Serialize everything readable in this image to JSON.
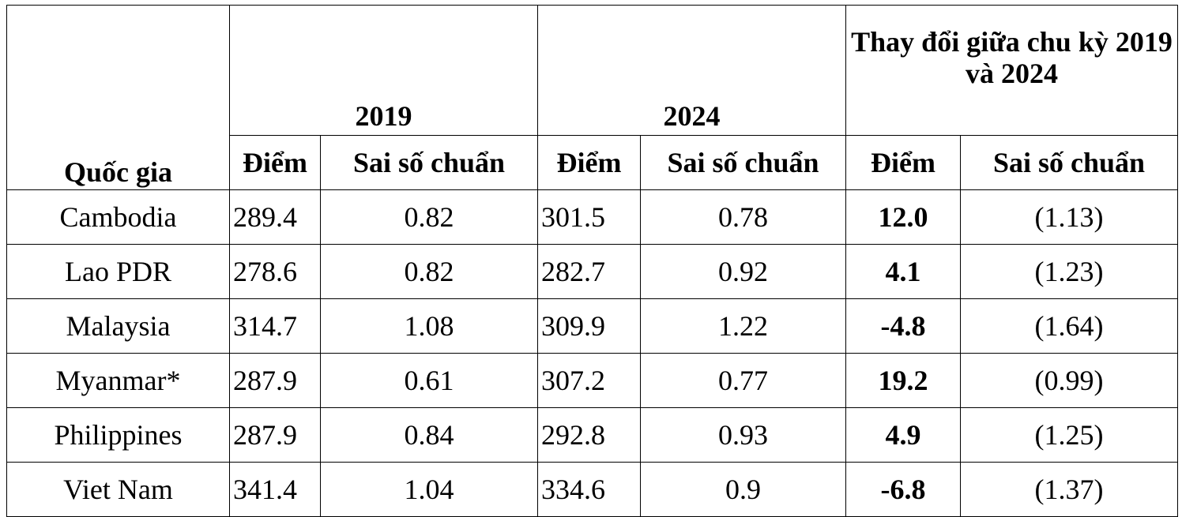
{
  "table": {
    "corner": "Quốc gia",
    "groups": [
      "2019",
      "2024",
      "Thay đổi giữa chu kỳ 2019 và 2024"
    ],
    "subheaders": [
      "Điểm",
      "Sai số chuẩn",
      "Điểm",
      "Sai số chuẩn",
      "Điểm",
      "Sai số chuẩn"
    ],
    "rows": [
      [
        "Cambodia",
        "289.4",
        "0.82",
        "301.5",
        "0.78",
        "12.0",
        "(1.13)"
      ],
      [
        "Lao PDR",
        "278.6",
        "0.82",
        "282.7",
        "0.92",
        "4.1",
        "(1.23)"
      ],
      [
        "Malaysia",
        "314.7",
        "1.08",
        "309.9",
        "1.22",
        "-4.8",
        "(1.64)"
      ],
      [
        "Myanmar*",
        "287.9",
        "0.61",
        "307.2",
        "0.77",
        "19.2",
        "(0.99)"
      ],
      [
        "Philippines",
        "287.9",
        "0.84",
        "292.8",
        "0.93",
        "4.9",
        "(1.25)"
      ],
      [
        "Viet Nam",
        "341.4",
        "1.04",
        "334.6",
        "0.9",
        "-6.8",
        "(1.37)"
      ]
    ]
  }
}
